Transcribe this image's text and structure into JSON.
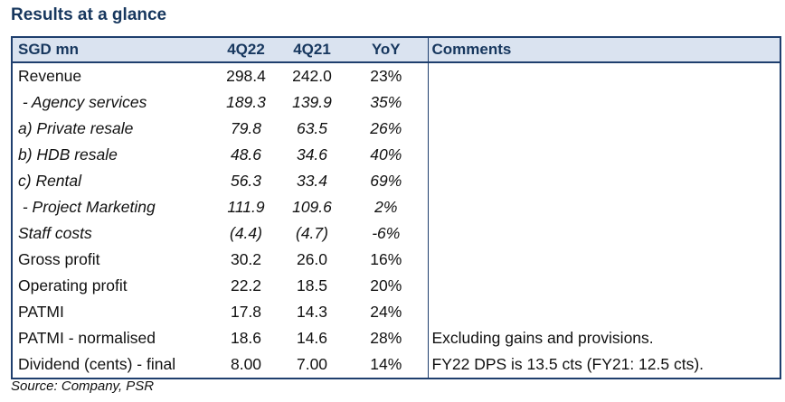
{
  "title": "Results at a glance",
  "headers": [
    "SGD mn",
    "4Q22",
    "4Q21",
    "YoY",
    "Comments"
  ],
  "rows": [
    {
      "label": "Revenue",
      "q22": "298.4",
      "q21": "242.0",
      "yoy": "23%",
      "comment": "",
      "italic": false
    },
    {
      "label": " - Agency services",
      "q22": "189.3",
      "q21": "139.9",
      "yoy": "35%",
      "comment": "",
      "italic": true
    },
    {
      "label": "a) Private resale",
      "q22": "79.8",
      "q21": "63.5",
      "yoy": "26%",
      "comment": "",
      "italic": true
    },
    {
      "label": "b) HDB resale",
      "q22": "48.6",
      "q21": "34.6",
      "yoy": "40%",
      "comment": "",
      "italic": true
    },
    {
      "label": "c) Rental",
      "q22": "56.3",
      "q21": "33.4",
      "yoy": "69%",
      "comment": "",
      "italic": true
    },
    {
      "label": " - Project Marketing",
      "q22": "111.9",
      "q21": "109.6",
      "yoy": "2%",
      "comment": "",
      "italic": true
    },
    {
      "label": "Staff costs",
      "q22": "(4.4)",
      "q21": "(4.7)",
      "yoy": "-6%",
      "comment": "",
      "italic": true
    },
    {
      "label": "Gross profit",
      "q22": "30.2",
      "q21": "26.0",
      "yoy": "16%",
      "comment": "",
      "italic": false
    },
    {
      "label": "Operating profit",
      "q22": "22.2",
      "q21": "18.5",
      "yoy": "20%",
      "comment": "",
      "italic": false
    },
    {
      "label": "PATMI",
      "q22": "17.8",
      "q21": "14.3",
      "yoy": "24%",
      "comment": "",
      "italic": false
    },
    {
      "label": "PATMI - normalised",
      "q22": "18.6",
      "q21": "14.6",
      "yoy": "28%",
      "comment": "Excluding gains and provisions.",
      "italic": false
    },
    {
      "label": "Dividend (cents) - final",
      "q22": "8.00",
      "q21": "7.00",
      "yoy": "14%",
      "comment": "FY22 DPS is 13.5 cts (FY21: 12.5 cts).",
      "italic": false
    }
  ],
  "source": "Source: Company, PSR"
}
